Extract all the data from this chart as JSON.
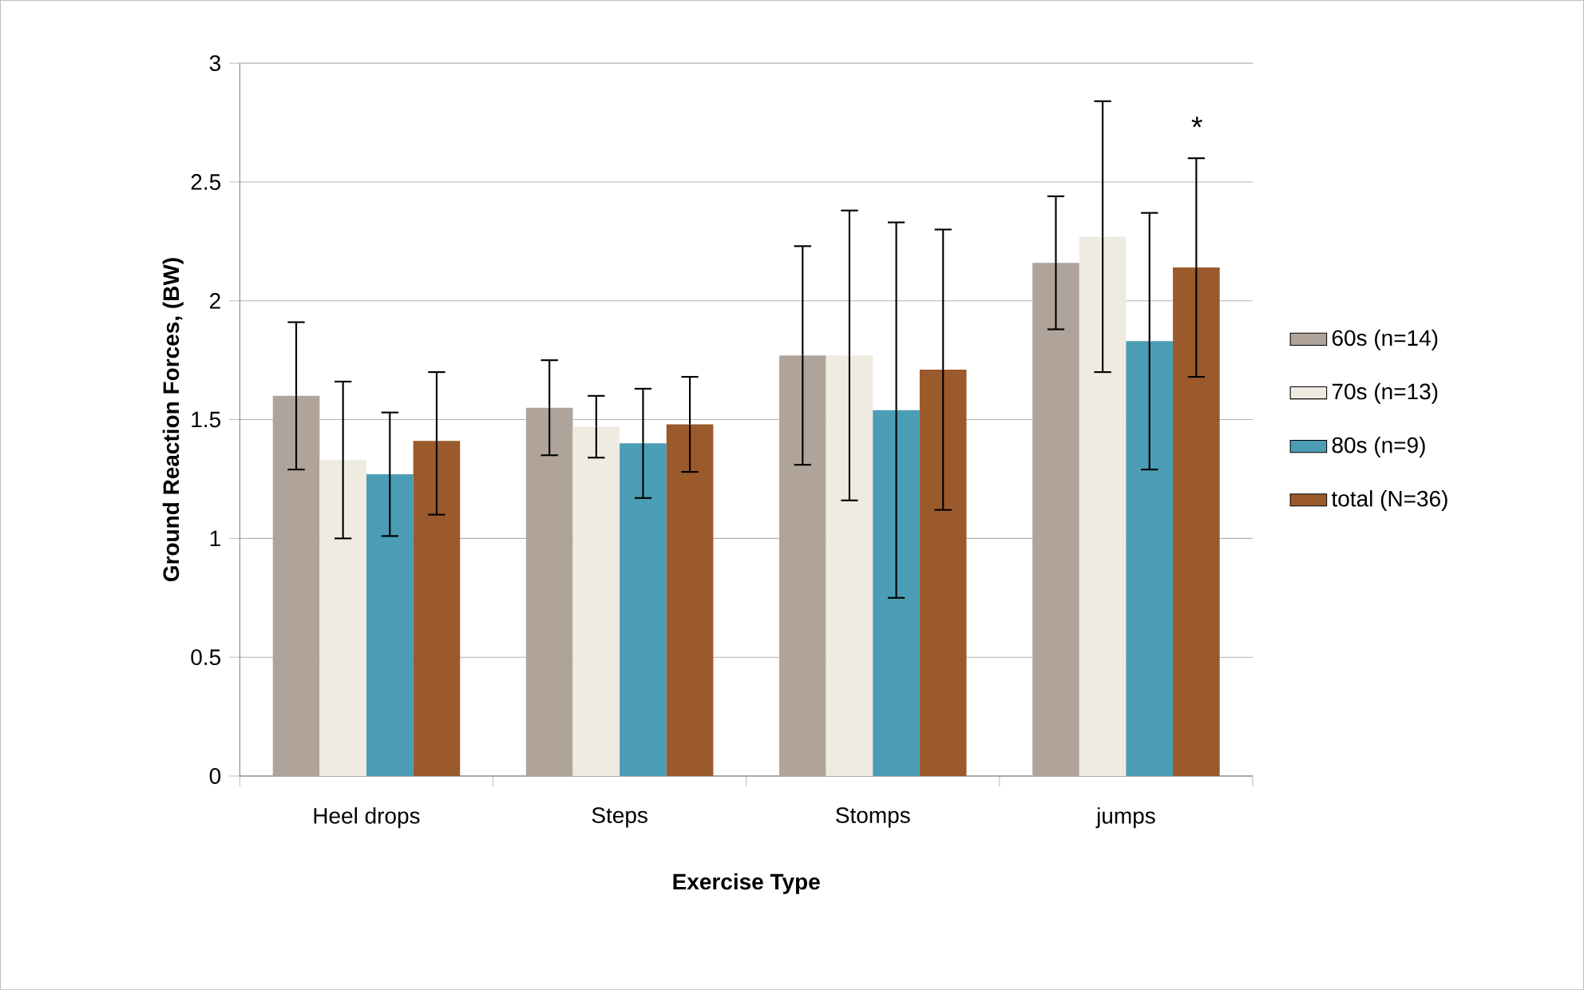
{
  "chart_data": {
    "type": "bar",
    "xlabel": "Exercise Type",
    "ylabel": "Ground Reaction Forces, (BW)",
    "categories": [
      "Heel drops",
      "Steps",
      "Stomps",
      "jumps"
    ],
    "series": [
      {
        "name": "60s (n=14)",
        "color": "#b0a49a",
        "values": [
          1.6,
          1.55,
          1.77,
          2.16
        ],
        "errors": [
          [
            1.29,
            1.91
          ],
          [
            1.35,
            1.75
          ],
          [
            1.31,
            2.23
          ],
          [
            1.88,
            2.44
          ]
        ]
      },
      {
        "name": "70s (n=13)",
        "color": "#efebe0",
        "values": [
          1.33,
          1.47,
          1.77,
          2.27
        ],
        "errors": [
          [
            1.0,
            1.66
          ],
          [
            1.34,
            1.6
          ],
          [
            1.16,
            2.38
          ],
          [
            1.7,
            2.84
          ]
        ]
      },
      {
        "name": "80s (n=9)",
        "color": "#4a9db5",
        "values": [
          1.27,
          1.4,
          1.54,
          1.83
        ],
        "errors": [
          [
            1.01,
            1.53
          ],
          [
            1.17,
            1.63
          ],
          [
            0.75,
            2.33
          ],
          [
            1.29,
            2.37
          ]
        ]
      },
      {
        "name": "total (N=36)",
        "color": "#9a5a2c",
        "values": [
          1.41,
          1.48,
          1.71,
          2.14
        ],
        "errors": [
          [
            1.1,
            1.7
          ],
          [
            1.28,
            1.68
          ],
          [
            1.12,
            2.3
          ],
          [
            1.68,
            2.6
          ]
        ]
      }
    ],
    "annotations": [
      "*"
    ],
    "ylim": [
      0,
      3
    ],
    "yticks": [
      0,
      0.5,
      1,
      1.5,
      2,
      2.5,
      3
    ],
    "grid": "y",
    "legend": "right"
  }
}
